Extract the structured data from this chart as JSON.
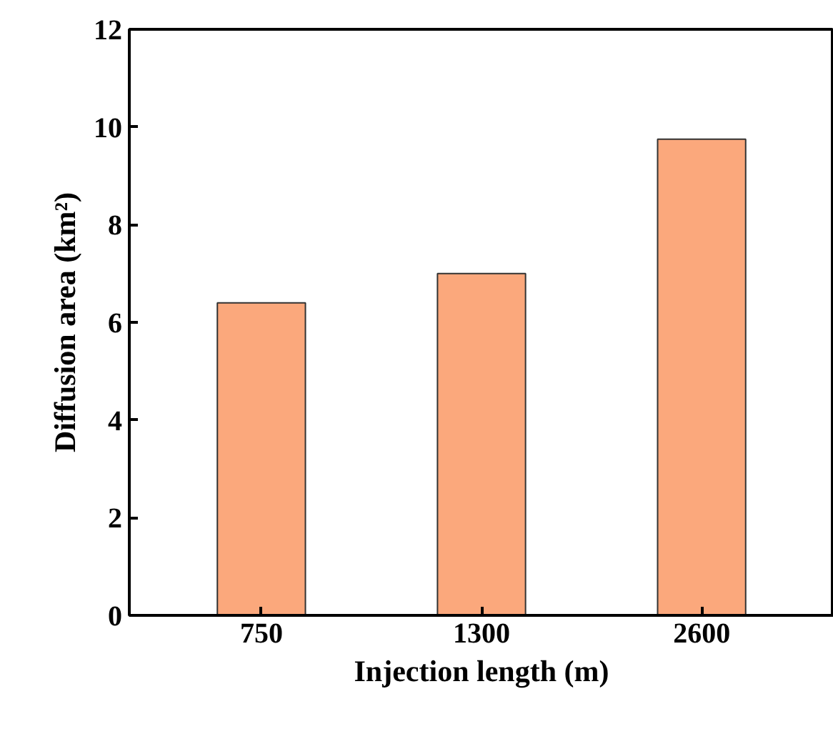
{
  "chart_data": {
    "type": "bar",
    "xlabel": "Injection length (m)",
    "ylabel": "Diffusion area (km²)",
    "categories": [
      "750",
      "1300",
      "2600"
    ],
    "values": [
      6.4,
      7.0,
      9.75
    ],
    "color": "#fba87c",
    "ylim": [
      0,
      12
    ],
    "yticks": [
      0,
      2,
      4,
      6,
      8,
      10,
      12
    ],
    "grid": false
  }
}
